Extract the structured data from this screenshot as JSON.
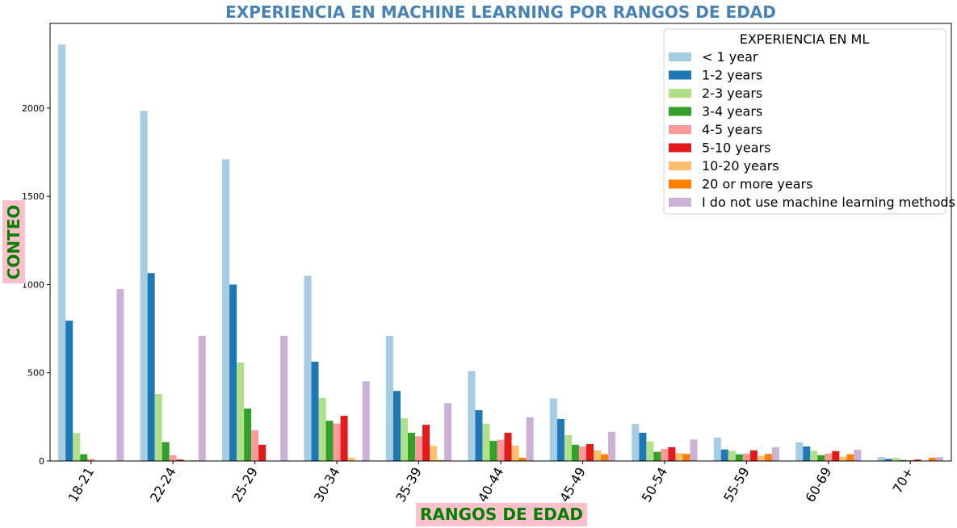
{
  "chart_data": {
    "type": "bar",
    "title": "EXPERIENCIA EN MACHINE LEARNING POR RANGOS DE EDAD",
    "xlabel": "RANGOS DE EDAD",
    "ylabel": "CONTEO",
    "ylim": [
      0,
      2480
    ],
    "yticks": [
      "0",
      "500",
      "1000",
      "1500",
      "2000"
    ],
    "legend_title": "EXPERIENCIA EN ML",
    "legend_position": "top-right",
    "grid": false,
    "categories": [
      "18-21",
      "22-24",
      "25-29",
      "30-34",
      "35-39",
      "40-44",
      "45-49",
      "50-54",
      "55-59",
      "60-69",
      "70+"
    ],
    "series": [
      {
        "name": "< 1 year",
        "color": "#a6cee3",
        "values": [
          2360,
          1985,
          1710,
          1050,
          710,
          510,
          355,
          210,
          132,
          106,
          22
        ]
      },
      {
        "name": "1-2 years",
        "color": "#1f78b4",
        "values": [
          795,
          1065,
          1000,
          563,
          397,
          288,
          238,
          160,
          65,
          82,
          12
        ]
      },
      {
        "name": "2-3 years",
        "color": "#b2df8a",
        "values": [
          158,
          380,
          558,
          357,
          242,
          211,
          147,
          110,
          58,
          58,
          18
        ]
      },
      {
        "name": "3-4 years",
        "color": "#33a02c",
        "values": [
          38,
          107,
          297,
          228,
          160,
          114,
          92,
          52,
          38,
          33,
          6
        ]
      },
      {
        "name": "4-5 years",
        "color": "#fb9a99",
        "values": [
          12,
          33,
          174,
          212,
          140,
          120,
          82,
          68,
          42,
          42,
          5
        ]
      },
      {
        "name": "5-10 years",
        "color": "#e31a1c",
        "values": [
          0,
          8,
          92,
          256,
          205,
          160,
          96,
          78,
          60,
          56,
          8
        ]
      },
      {
        "name": "10-20 years",
        "color": "#fdbf6f",
        "values": [
          0,
          0,
          0,
          18,
          86,
          86,
          60,
          45,
          30,
          24,
          0
        ]
      },
      {
        "name": "20 or more years",
        "color": "#ff7f00",
        "values": [
          0,
          3,
          0,
          0,
          5,
          18,
          38,
          40,
          40,
          38,
          18
        ]
      },
      {
        "name": "I do not use machine learning methods",
        "color": "#cab2d6",
        "values": [
          975,
          710,
          710,
          452,
          328,
          248,
          165,
          122,
          78,
          64,
          22
        ]
      }
    ],
    "label_box_color": "#ffc0cb",
    "axis_label_color": "#008000",
    "title_color": "#4682b4"
  }
}
